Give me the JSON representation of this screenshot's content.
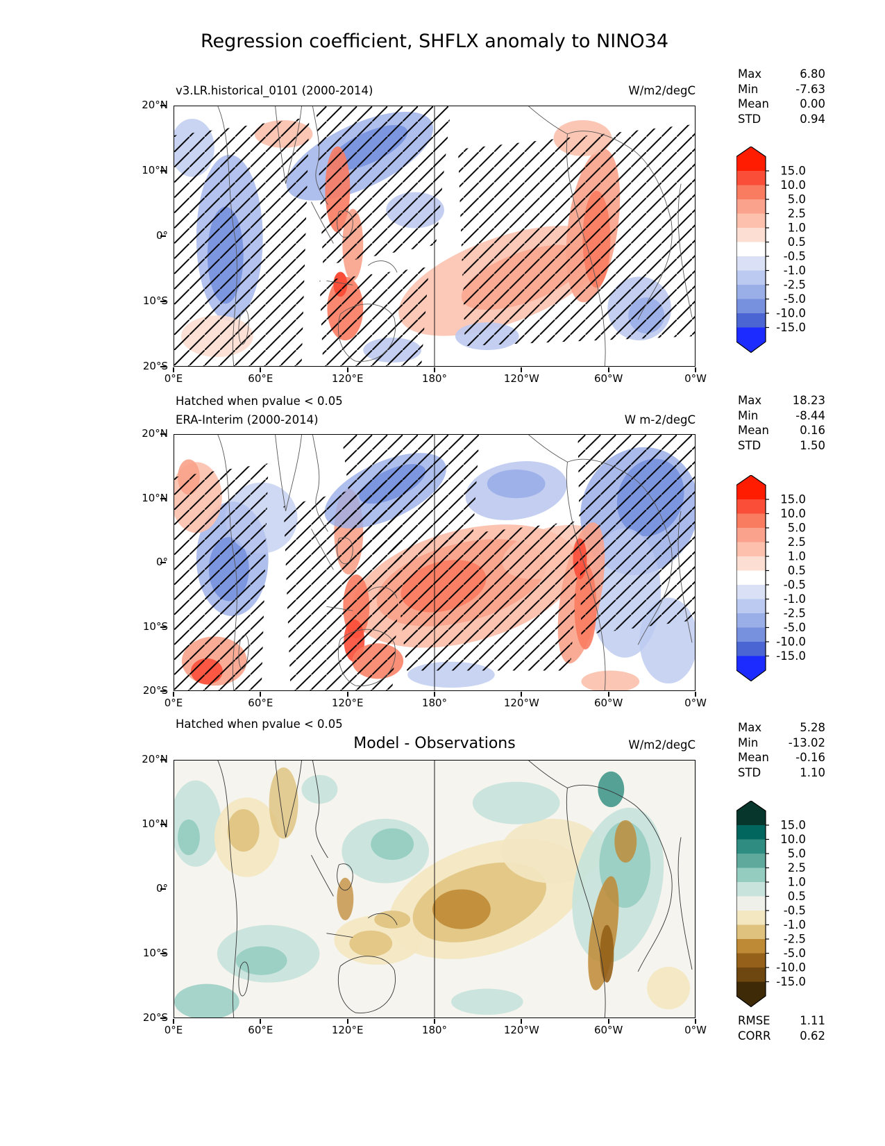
{
  "figure_title": "Regression coefficient, SHFLX anomaly to NINO34",
  "axis": {
    "y_labels": [
      "20°N",
      "10°N",
      "0°",
      "10°S",
      "20°S"
    ],
    "x_labels": [
      "0°E",
      "60°E",
      "120°E",
      "180°",
      "120°W",
      "60°W",
      "0°W"
    ]
  },
  "colorbar": {
    "tick_labels": [
      "15.0",
      "10.0",
      "5.0",
      "2.5",
      "1.0",
      "0.5",
      "-0.5",
      "-1.0",
      "-2.5",
      "-5.0",
      "-10.0",
      "-15.0"
    ],
    "rdbu_colors": [
      "#ff1c00",
      "#fb4e39",
      "#f97b60",
      "#faa28b",
      "#fcc0ad",
      "#fdded2",
      "#ffffff",
      "#dae1f7",
      "#bcc9f0",
      "#9aaee8",
      "#7791de",
      "#4b66d3",
      "#1c2bff"
    ],
    "brbg_colors": [
      "#06362c",
      "#01665e",
      "#2e8c80",
      "#5fa99c",
      "#94ccc0",
      "#c7e3dc",
      "#f0f0ea",
      "#f3e7c2",
      "#dfc27d",
      "#bf8a35",
      "#95601a",
      "#6e4710",
      "#3f2a08"
    ]
  },
  "panels": [
    {
      "subtitle": "v3.LR.historical_0101 (2000-2014)",
      "units": "W/m2/degC",
      "footnote": "Hatched when pvalue < 0.05",
      "stats": {
        "max_label": "Max",
        "min_label": "Min",
        "mean_label": "Mean",
        "std_label": "STD",
        "max": "6.80",
        "min": "-7.63",
        "mean": "0.00",
        "std": "0.94"
      }
    },
    {
      "subtitle": "ERA-Interim (2000-2014)",
      "units": "W m-2/degC",
      "footnote": "Hatched when pvalue < 0.05",
      "stats": {
        "max_label": "Max",
        "min_label": "Min",
        "mean_label": "Mean",
        "std_label": "STD",
        "max": "18.23",
        "min": "-8.44",
        "mean": "0.16",
        "std": "1.50"
      }
    },
    {
      "subtitle": "Model - Observations",
      "units": "W/m2/degC",
      "stats": {
        "max_label": "Max",
        "min_label": "Min",
        "mean_label": "Mean",
        "std_label": "STD",
        "max": "5.28",
        "min": "-13.02",
        "mean": "-0.16",
        "std": "1.10"
      }
    }
  ],
  "metrics": {
    "rmse_label": "RMSE",
    "rmse": "1.11",
    "corr_label": "CORR",
    "corr": "0.62"
  },
  "chart_data": {
    "type": "heatmap",
    "subtype": "lat-lon contour map set",
    "title": "Regression coefficient, SHFLX anomaly to NINO34",
    "lat_range_deg": [
      -20,
      20
    ],
    "lon_range_deg": [
      0,
      360
    ],
    "x_tick_labels": [
      "0°E",
      "60°E",
      "120°E",
      "180°",
      "120°W",
      "60°W",
      "0°W"
    ],
    "y_tick_labels": [
      "20°N",
      "10°N",
      "0°",
      "10°S",
      "20°S"
    ],
    "contour_levels": [
      -15,
      -10,
      -5,
      -2.5,
      -1,
      -0.5,
      0.5,
      1,
      2.5,
      5,
      10,
      15
    ],
    "colorbar_extend": "both",
    "panels": [
      {
        "title": "v3.LR.historical_0101 (2000-2014)",
        "units": "W/m2/degC",
        "colormap": "blue-white-red",
        "hatching": "pvalue < 0.05",
        "stats": {
          "max": 6.8,
          "min": -7.63,
          "mean": 0.0,
          "std": 0.94
        }
      },
      {
        "title": "ERA-Interim (2000-2014)",
        "units": "W m-2/degC",
        "colormap": "blue-white-red",
        "hatching": "pvalue < 0.05",
        "stats": {
          "max": 18.23,
          "min": -8.44,
          "mean": 0.16,
          "std": 1.5
        }
      },
      {
        "title": "Model - Observations",
        "units": "W/m2/degC",
        "colormap": "brown-white-teal",
        "hatching": null,
        "stats": {
          "max": 5.28,
          "min": -13.02,
          "mean": -0.16,
          "std": 1.1
        }
      }
    ],
    "metrics": {
      "rmse": 1.11,
      "corr": 0.62
    }
  }
}
